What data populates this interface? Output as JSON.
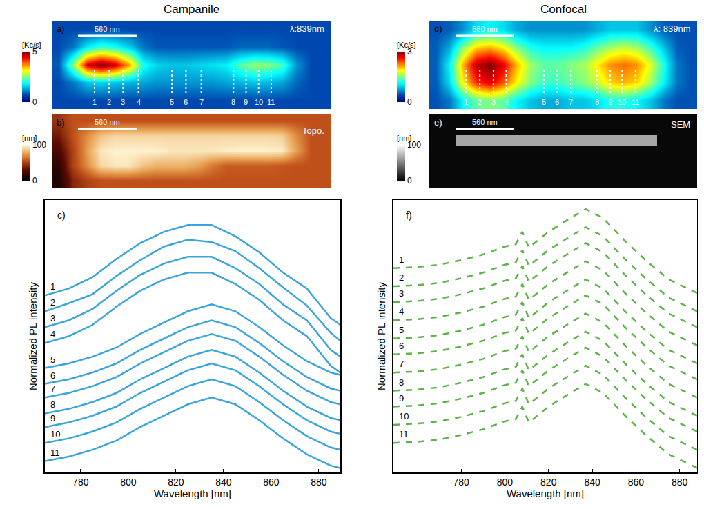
{
  "chart_data": [
    {
      "type": "heatmap",
      "label": "a)",
      "title": "Campanile",
      "color": "jet",
      "colorbar": {
        "title": "[Kc/s]",
        "range": [
          0,
          5
        ],
        "ticks": [
          0,
          5
        ]
      },
      "annotations": [
        "λ:839nm"
      ],
      "scale_bar": "560 nm",
      "markers": [
        {
          "label": "1",
          "x": 2.56
        },
        {
          "label": "2",
          "x": 3.6
        },
        {
          "label": "3",
          "x": 4.6
        },
        {
          "label": "4",
          "x": 5.7
        },
        {
          "label": "5",
          "x": 8.1
        },
        {
          "label": "6",
          "x": 9.1
        },
        {
          "label": "7",
          "x": 10.2
        },
        {
          "label": "8",
          "x": 12.5
        },
        {
          "label": "9",
          "x": 13.4
        },
        {
          "label": "10",
          "x": 14.3
        },
        {
          "label": "11",
          "x": 15.2
        }
      ],
      "z": [
        [
          0.7,
          0.7,
          0.7,
          0.7,
          0.7,
          0.7,
          0.7,
          0.7,
          0.7,
          0.7,
          0.7,
          0.7,
          0.7,
          0.7,
          0.7,
          0.7,
          0.7,
          0.7,
          0.7,
          0.7
        ],
        [
          0.7,
          1.0,
          1.8,
          2.2,
          2.0,
          1.6,
          1.0,
          0.8,
          0.8,
          0.8,
          0.8,
          0.8,
          0.8,
          0.9,
          0.9,
          0.9,
          0.8,
          0.7,
          0.7,
          0.7
        ],
        [
          0.8,
          2.5,
          4.5,
          5.0,
          4.6,
          3.6,
          2.0,
          1.6,
          1.5,
          1.5,
          1.6,
          1.7,
          1.8,
          2.3,
          2.6,
          2.5,
          2.2,
          1.2,
          0.7,
          0.7
        ],
        [
          0.7,
          1.0,
          1.5,
          1.6,
          1.5,
          1.4,
          1.3,
          1.2,
          1.2,
          1.2,
          1.2,
          1.2,
          1.3,
          1.4,
          1.5,
          1.4,
          1.3,
          0.9,
          0.7,
          0.7
        ],
        [
          0.7,
          0.7,
          0.7,
          0.7,
          0.7,
          0.7,
          0.7,
          0.7,
          0.7,
          0.7,
          0.7,
          0.7,
          0.7,
          0.7,
          0.7,
          0.7,
          0.7,
          0.7,
          0.7,
          0.7
        ]
      ]
    },
    {
      "type": "heatmap",
      "label": "b)",
      "color": "afmhot",
      "colorbar": {
        "title": "[nm]",
        "range": [
          0,
          100
        ],
        "ticks": [
          0,
          100
        ]
      },
      "annotations": [
        "Topo."
      ],
      "scale_bar": "560 nm",
      "z": [
        [
          45,
          55,
          55,
          55,
          55,
          55,
          55,
          55,
          55,
          55,
          55,
          55,
          55,
          55,
          55,
          55,
          55,
          55,
          55,
          55
        ],
        [
          35,
          55,
          70,
          85,
          90,
          90,
          90,
          90,
          90,
          90,
          90,
          90,
          90,
          90,
          90,
          90,
          88,
          70,
          55,
          55
        ],
        [
          25,
          50,
          75,
          95,
          98,
          98,
          98,
          98,
          95,
          95,
          95,
          95,
          97,
          98,
          98,
          98,
          96,
          75,
          55,
          55
        ],
        [
          15,
          50,
          70,
          90,
          95,
          95,
          85,
          80,
          80,
          80,
          75,
          65,
          58,
          58,
          58,
          58,
          56,
          55,
          55,
          55
        ],
        [
          10,
          40,
          50,
          55,
          55,
          55,
          55,
          55,
          55,
          55,
          55,
          55,
          55,
          55,
          55,
          55,
          55,
          55,
          55,
          55
        ]
      ]
    },
    {
      "type": "line",
      "label": "c)",
      "xlabel": "Wavelength [nm]",
      "ylabel": "Normalized PL intensity",
      "color": "#3aa5dc",
      "line_style": "solid",
      "tick_labels": "x",
      "xlim": [
        765,
        889
      ],
      "xticks": [
        780,
        800,
        820,
        840,
        860,
        880
      ],
      "ylim": [
        0,
        12
      ],
      "x": [
        765,
        775,
        785,
        795,
        805,
        815,
        825,
        835,
        845,
        855,
        865,
        875,
        885,
        889
      ],
      "series": [
        {
          "name": "1",
          "values": [
            7.8,
            8.1,
            8.6,
            9.4,
            10.1,
            10.6,
            10.9,
            10.9,
            10.4,
            9.7,
            8.8,
            8.1,
            6.8,
            6.5
          ]
        },
        {
          "name": "2",
          "values": [
            7.1,
            7.45,
            7.85,
            8.65,
            9.35,
            9.95,
            10.25,
            10.15,
            9.75,
            9.0,
            8.15,
            7.35,
            6.15,
            5.8
          ]
        },
        {
          "name": "3",
          "values": [
            6.4,
            6.7,
            7.2,
            8.0,
            8.7,
            9.2,
            9.5,
            9.5,
            9.0,
            8.3,
            7.4,
            6.7,
            5.4,
            5.1
          ]
        },
        {
          "name": "4",
          "values": [
            5.7,
            6.0,
            6.5,
            7.3,
            8.0,
            8.5,
            8.8,
            8.8,
            8.3,
            7.6,
            6.7,
            6.0,
            4.7,
            4.4
          ]
        },
        {
          "name": "5",
          "values": [
            4.6,
            4.8,
            5.1,
            5.5,
            6.1,
            6.6,
            7.1,
            7.4,
            7.1,
            6.4,
            5.6,
            4.9,
            4.4,
            4.3
          ]
        },
        {
          "name": "6",
          "values": [
            3.9,
            4.1,
            4.4,
            4.8,
            5.4,
            5.9,
            6.4,
            6.7,
            6.4,
            5.7,
            4.9,
            4.2,
            3.7,
            3.6
          ]
        },
        {
          "name": "7",
          "values": [
            3.3,
            3.5,
            3.8,
            4.2,
            4.8,
            5.3,
            5.8,
            6.1,
            5.8,
            5.1,
            4.3,
            3.6,
            3.1,
            3.0
          ]
        },
        {
          "name": "8",
          "values": [
            2.6,
            2.8,
            3.1,
            3.5,
            4.1,
            4.6,
            5.1,
            5.4,
            5.1,
            4.4,
            3.6,
            2.9,
            2.4,
            2.3
          ]
        },
        {
          "name": "9",
          "values": [
            2.0,
            2.2,
            2.5,
            2.9,
            3.5,
            4.0,
            4.5,
            4.8,
            4.5,
            3.8,
            3.0,
            2.3,
            1.8,
            1.7
          ]
        },
        {
          "name": "10",
          "values": [
            1.3,
            1.5,
            1.8,
            2.2,
            2.8,
            3.3,
            3.8,
            4.1,
            3.8,
            3.1,
            2.3,
            1.6,
            1.1,
            1.0
          ]
        },
        {
          "name": "11",
          "values": [
            0.5,
            0.7,
            1.0,
            1.4,
            2.0,
            2.5,
            3.0,
            3.3,
            3.0,
            2.3,
            1.5,
            0.8,
            0.3,
            0.2
          ]
        }
      ]
    },
    {
      "type": "heatmap",
      "label": "d)",
      "title": "Confocal",
      "color": "jet",
      "colorbar": {
        "title": "[Kc/s]",
        "range": [
          0,
          3
        ],
        "ticks": [
          0,
          3
        ]
      },
      "annotations": [
        "λ: 839nm"
      ],
      "scale_bar": "560 nm",
      "markers": [
        {
          "label": "1",
          "x": 2.25
        },
        {
          "label": "2",
          "x": 3.27
        },
        {
          "label": "3",
          "x": 4.29
        },
        {
          "label": "4",
          "x": 5.25
        },
        {
          "label": "5",
          "x": 8.05
        },
        {
          "label": "6",
          "x": 9.06
        },
        {
          "label": "7",
          "x": 10.08
        },
        {
          "label": "8",
          "x": 12.0
        },
        {
          "label": "9",
          "x": 13.0
        },
        {
          "label": "10",
          "x": 13.9
        },
        {
          "label": "11",
          "x": 14.9
        }
      ],
      "z": [
        [
          0.45,
          0.5,
          0.7,
          1.0,
          1.1,
          1.0,
          0.8,
          0.7,
          0.7,
          0.7,
          0.7,
          0.7,
          0.8,
          0.9,
          0.9,
          0.9,
          0.7,
          0.5,
          0.45,
          0.45
        ],
        [
          0.5,
          0.8,
          1.5,
          2.0,
          2.1,
          1.9,
          1.5,
          1.2,
          1.1,
          1.1,
          1.1,
          1.2,
          1.4,
          1.6,
          1.7,
          1.6,
          1.3,
          0.9,
          0.5,
          0.45
        ],
        [
          0.5,
          1.1,
          2.1,
          2.8,
          3.0,
          2.7,
          2.1,
          1.6,
          1.4,
          1.4,
          1.5,
          1.6,
          1.9,
          2.2,
          2.3,
          2.2,
          1.8,
          1.2,
          0.6,
          0.45
        ],
        [
          0.5,
          1.0,
          1.9,
          2.5,
          2.7,
          2.4,
          1.9,
          1.5,
          1.3,
          1.3,
          1.4,
          1.5,
          1.7,
          2.0,
          2.1,
          2.0,
          1.6,
          1.1,
          0.6,
          0.45
        ],
        [
          0.45,
          0.6,
          1.1,
          1.4,
          1.5,
          1.4,
          1.1,
          0.9,
          0.8,
          0.8,
          0.9,
          0.9,
          1.0,
          1.2,
          1.2,
          1.1,
          0.9,
          0.6,
          0.45,
          0.45
        ]
      ]
    },
    {
      "type": "heatmap",
      "label": "e)",
      "color": "gray",
      "colorbar": {
        "title": "[nm]",
        "range": [
          0,
          100
        ],
        "ticks": [
          0,
          100
        ]
      },
      "annotations": [
        "SEM"
      ],
      "scale_bar": "560 nm",
      "z": [
        [
          3,
          3,
          3,
          3,
          3,
          3,
          3,
          3,
          3,
          3,
          3,
          3,
          3,
          3,
          3,
          3,
          3,
          3,
          3,
          3
        ],
        [
          3,
          3,
          3,
          3,
          3,
          3,
          3,
          3,
          3,
          3,
          3,
          3,
          3,
          3,
          3,
          3,
          3,
          3,
          3,
          3
        ],
        [
          3,
          3,
          65,
          65,
          65,
          65,
          65,
          65,
          65,
          65,
          65,
          65,
          65,
          65,
          65,
          65,
          65,
          3,
          3,
          3
        ],
        [
          3,
          3,
          3,
          3,
          3,
          3,
          3,
          3,
          3,
          3,
          3,
          3,
          3,
          3,
          3,
          3,
          3,
          3,
          3,
          3
        ],
        [
          3,
          3,
          3,
          3,
          3,
          3,
          3,
          3,
          3,
          3,
          3,
          3,
          3,
          3,
          3,
          3,
          3,
          3,
          3,
          3
        ],
        [
          3,
          3,
          3,
          3,
          3,
          3,
          3,
          3,
          3,
          3,
          3,
          3,
          3,
          3,
          3,
          3,
          3,
          3,
          3,
          3
        ],
        [
          3,
          3,
          3,
          3,
          3,
          3,
          3,
          3,
          3,
          3,
          3,
          3,
          3,
          3,
          3,
          3,
          3,
          3,
          3,
          3
        ]
      ]
    },
    {
      "type": "line",
      "label": "f)",
      "xlabel": "Wavelength [nm]",
      "ylabel": "Normalized PL intensity",
      "color": "#5cb346",
      "line_style": "dash",
      "tick_labels": "x",
      "xlim": [
        749,
        888
      ],
      "xticks": [
        780,
        800,
        820,
        840,
        860,
        880
      ],
      "ylim": [
        0,
        12
      ],
      "x": [
        749,
        760,
        770,
        780,
        790,
        800,
        805,
        808,
        811,
        820,
        830,
        837,
        845,
        855,
        865,
        875,
        888
      ],
      "series": [
        {
          "name": "1",
          "values": [
            9.0,
            9.05,
            9.15,
            9.35,
            9.6,
            9.95,
            10.05,
            10.6,
            9.9,
            10.6,
            11.2,
            11.6,
            11.2,
            10.2,
            9.3,
            8.5,
            7.9
          ]
        },
        {
          "name": "2",
          "values": [
            8.2,
            8.25,
            8.35,
            8.55,
            8.8,
            9.15,
            9.25,
            9.8,
            9.1,
            9.8,
            10.4,
            10.8,
            10.4,
            9.4,
            8.5,
            7.7,
            7.1
          ]
        },
        {
          "name": "3",
          "values": [
            7.5,
            7.55,
            7.65,
            7.85,
            8.1,
            8.45,
            8.55,
            9.1,
            8.4,
            9.1,
            9.7,
            10.1,
            9.7,
            8.7,
            7.8,
            7.0,
            6.4
          ]
        },
        {
          "name": "4",
          "values": [
            6.7,
            6.75,
            6.85,
            7.05,
            7.3,
            7.65,
            7.75,
            8.3,
            7.6,
            8.3,
            8.9,
            9.3,
            8.9,
            7.9,
            7.0,
            6.2,
            5.6
          ]
        },
        {
          "name": "5",
          "values": [
            5.9,
            5.95,
            6.05,
            6.25,
            6.5,
            6.85,
            6.95,
            7.5,
            6.8,
            7.5,
            8.1,
            8.5,
            8.1,
            7.1,
            6.2,
            5.4,
            4.8
          ]
        },
        {
          "name": "6",
          "values": [
            5.2,
            5.25,
            5.35,
            5.55,
            5.8,
            6.15,
            6.25,
            6.8,
            6.1,
            6.8,
            7.4,
            7.8,
            7.4,
            6.4,
            5.5,
            4.7,
            4.1
          ]
        },
        {
          "name": "7",
          "values": [
            4.4,
            4.45,
            4.55,
            4.75,
            5.0,
            5.35,
            5.45,
            6.0,
            5.3,
            6.0,
            6.6,
            7.0,
            6.6,
            5.6,
            4.7,
            3.9,
            3.3
          ]
        },
        {
          "name": "8",
          "values": [
            3.6,
            3.65,
            3.75,
            3.95,
            4.2,
            4.55,
            4.65,
            5.2,
            4.5,
            5.2,
            5.8,
            6.2,
            5.8,
            4.8,
            3.9,
            3.1,
            2.5
          ]
        },
        {
          "name": "9",
          "values": [
            2.9,
            2.95,
            3.05,
            3.25,
            3.5,
            3.85,
            3.95,
            4.5,
            3.8,
            4.5,
            5.1,
            5.5,
            5.1,
            4.1,
            3.2,
            2.4,
            1.8
          ]
        },
        {
          "name": "10",
          "values": [
            2.1,
            2.15,
            2.25,
            2.45,
            2.7,
            3.05,
            3.15,
            3.7,
            3.0,
            3.7,
            4.3,
            4.7,
            4.3,
            3.3,
            2.4,
            1.6,
            1.0
          ]
        },
        {
          "name": "11",
          "values": [
            1.3,
            1.35,
            1.45,
            1.65,
            1.9,
            2.25,
            2.35,
            2.9,
            2.2,
            2.9,
            3.5,
            3.9,
            3.5,
            2.5,
            1.6,
            0.8,
            0.2
          ]
        }
      ]
    }
  ]
}
